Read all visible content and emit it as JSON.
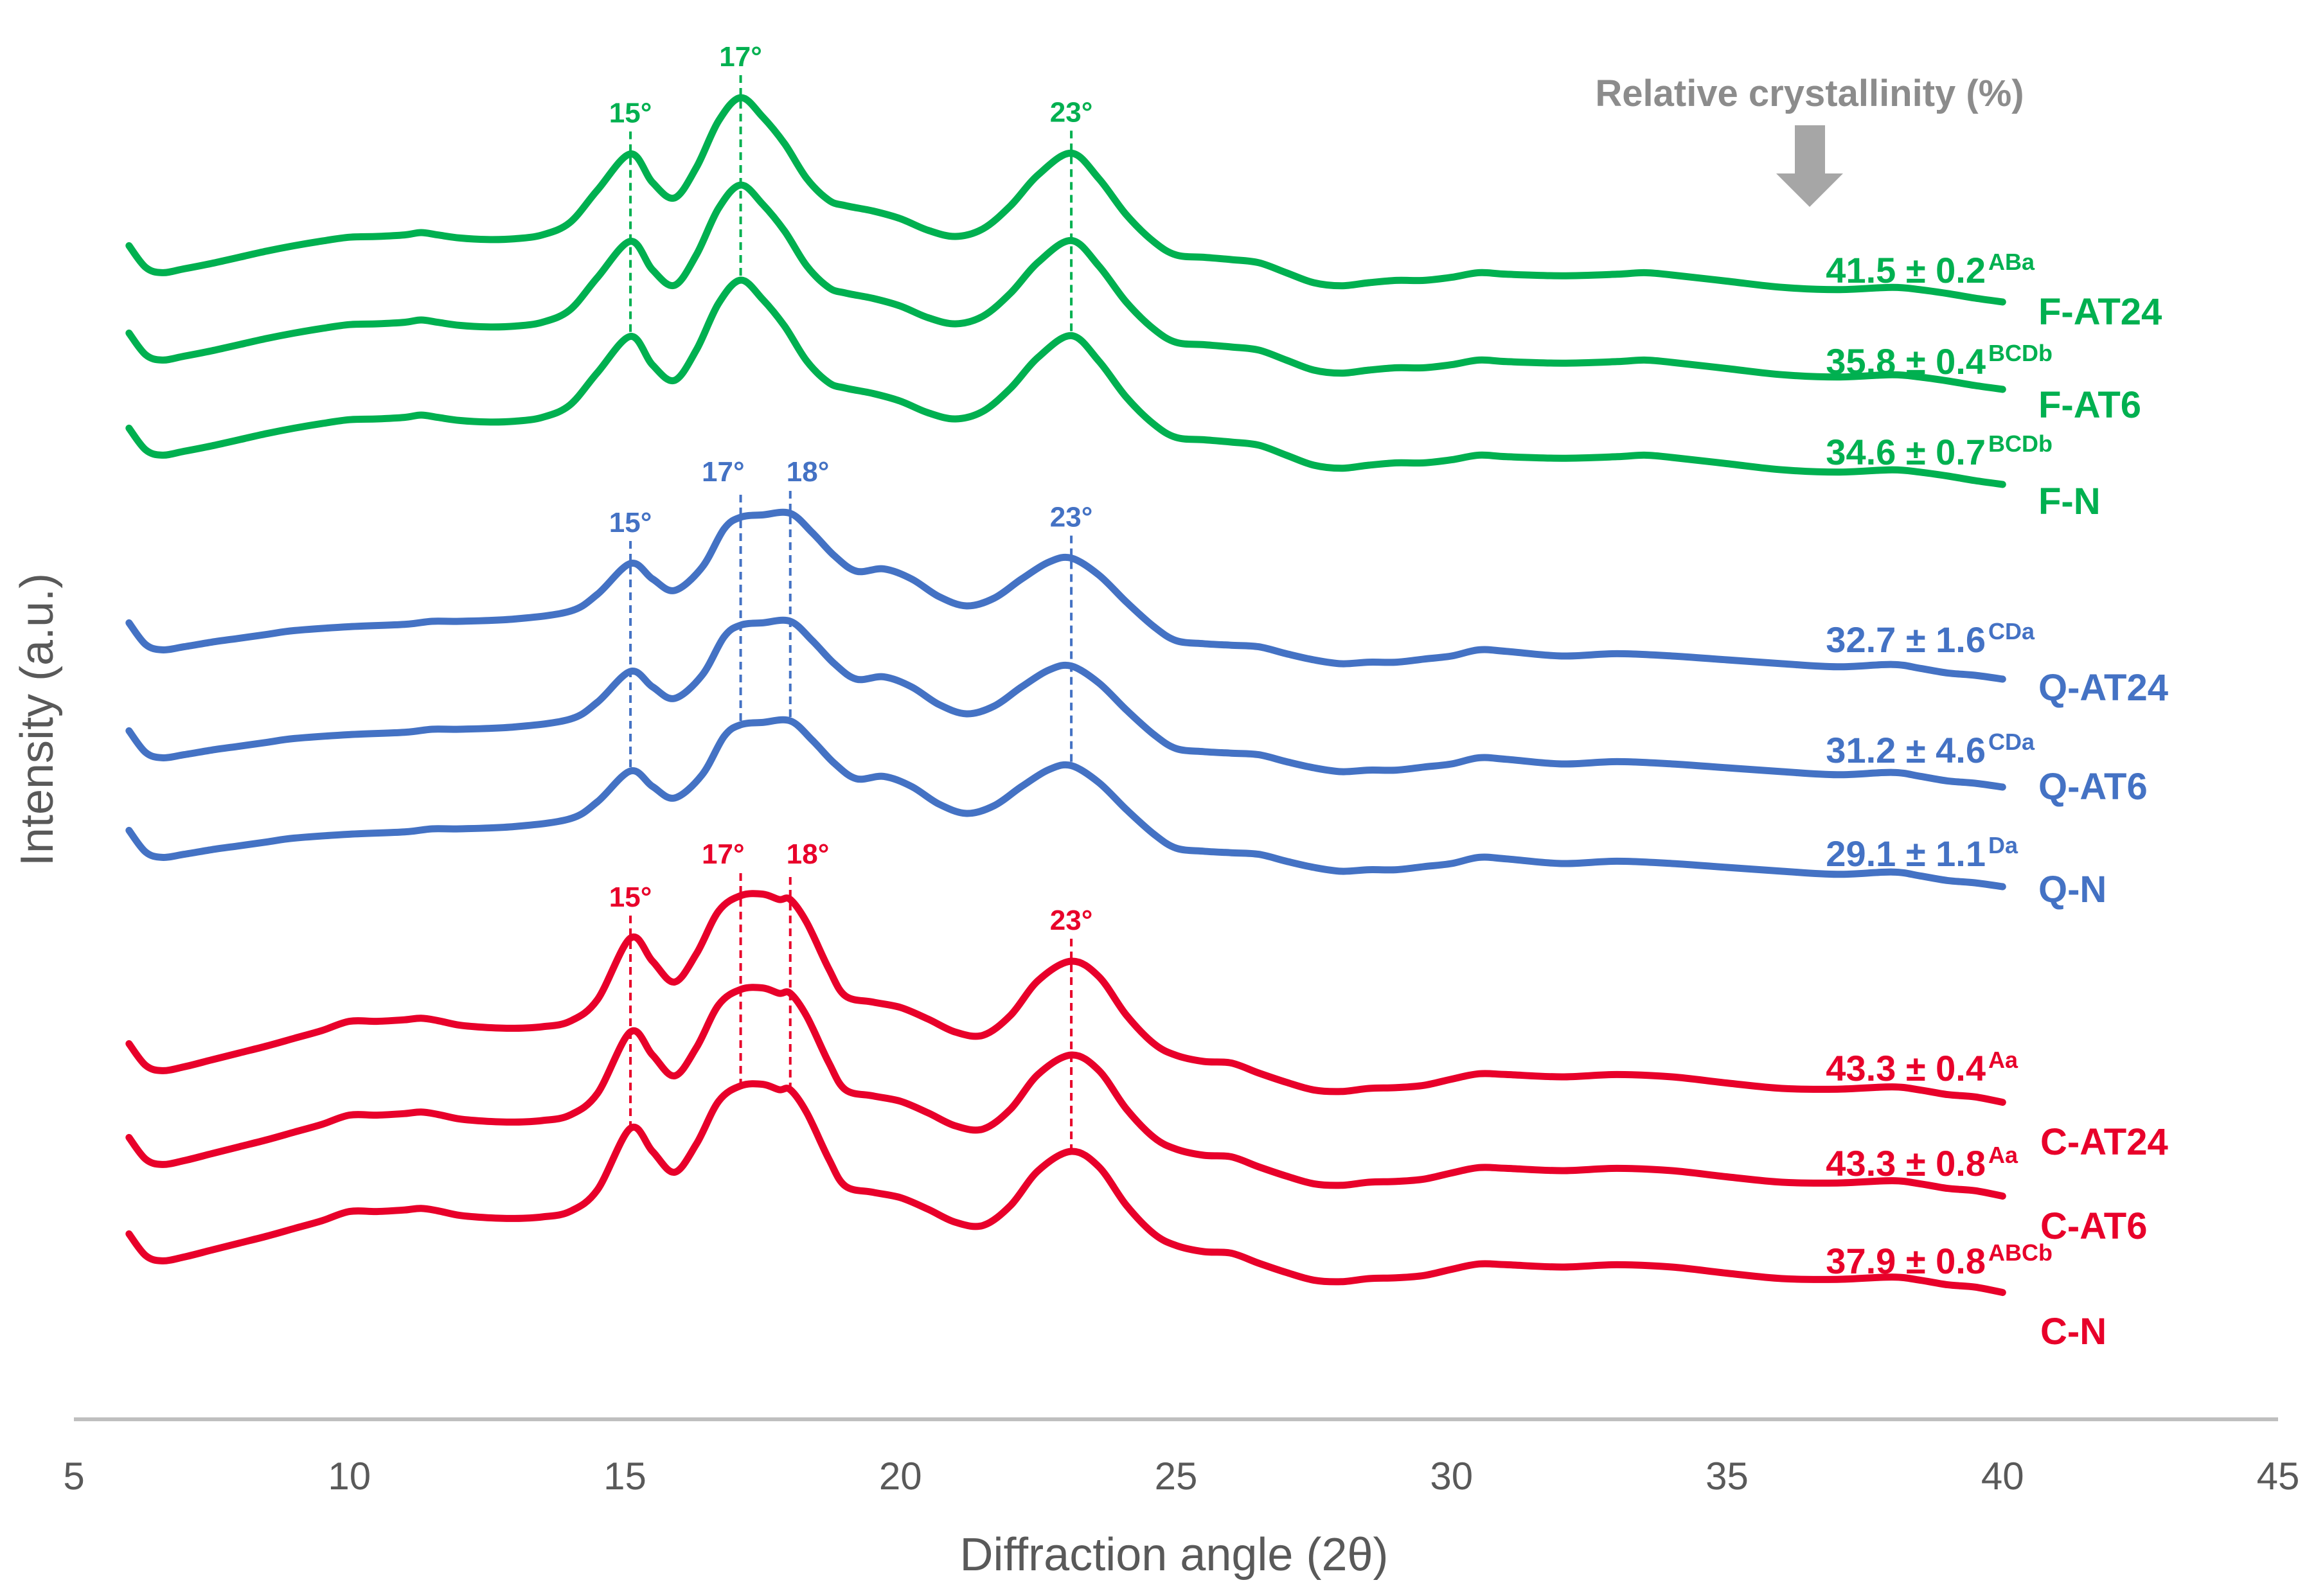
{
  "chart_data": {
    "type": "line",
    "title": "",
    "xlabel": "Diffraction angle (2θ)",
    "ylabel": "Intensity (a.u.)",
    "xlim": [
      5,
      45
    ],
    "x_ticks": [
      "5",
      "10",
      "15",
      "20",
      "25",
      "30",
      "35",
      "40",
      "45"
    ],
    "y_ticks": "none",
    "grid": false,
    "legend": "none",
    "annotation_title": "Relative crystallinity (%)",
    "colors": {
      "F": "#00b050",
      "Q": "#4472c4",
      "C": "#e8002a",
      "axis": "#bfbfbf",
      "text": "#595959",
      "arrow": "#a6a6a6"
    },
    "peak_labels": [
      {
        "group": "F",
        "labels": [
          {
            "x": 15.1,
            "text": "15°"
          },
          {
            "x": 17.1,
            "text": "17°"
          },
          {
            "x": 23.1,
            "text": "23°"
          }
        ]
      },
      {
        "group": "Q",
        "labels": [
          {
            "x": 15.1,
            "text": "15°"
          },
          {
            "x": 17.1,
            "text": "17°"
          },
          {
            "x": 18.0,
            "text": "18°"
          },
          {
            "x": 23.1,
            "text": "23°"
          }
        ]
      },
      {
        "group": "C",
        "labels": [
          {
            "x": 15.1,
            "text": "15°"
          },
          {
            "x": 17.1,
            "text": "17°"
          },
          {
            "x": 18.0,
            "text": "18°"
          },
          {
            "x": 23.1,
            "text": "23°"
          }
        ]
      }
    ],
    "series": [
      {
        "name": "F-AT24",
        "group": "F",
        "crystallinity": "41.5 ± 0.2",
        "letters": "ABa",
        "profile": "F"
      },
      {
        "name": "F-AT6",
        "group": "F",
        "crystallinity": "35.8 ± 0.4",
        "letters": "BCDb",
        "profile": "F"
      },
      {
        "name": "F-N",
        "group": "F",
        "crystallinity": "34.6 ± 0.7",
        "letters": "BCDb",
        "profile": "F"
      },
      {
        "name": "Q-AT24",
        "group": "Q",
        "crystallinity": "32.7 ± 1.6",
        "letters": "CDa",
        "profile": "Q"
      },
      {
        "name": "Q-AT6",
        "group": "Q",
        "crystallinity": "31.2 ± 4.6",
        "letters": "CDa",
        "profile": "Q"
      },
      {
        "name": "Q-N",
        "group": "Q",
        "crystallinity": "29.1 ± 1.1",
        "letters": "Da",
        "profile": "Q"
      },
      {
        "name": "C-AT24",
        "group": "C",
        "crystallinity": "43.3 ± 0.4",
        "letters": "Aa",
        "profile": "C"
      },
      {
        "name": "C-AT6",
        "group": "C",
        "crystallinity": "43.3 ± 0.8",
        "letters": "Aa",
        "profile": "C"
      },
      {
        "name": "C-N",
        "group": "C",
        "crystallinity": "37.9 ± 0.8",
        "letters": "ABCb",
        "profile": "C"
      }
    ],
    "profiles": {
      "F": {
        "x": [
          6.0,
          6.3,
          6.6,
          7.0,
          7.5,
          8.0,
          8.5,
          9.0,
          9.5,
          10.0,
          10.5,
          11.0,
          11.3,
          11.6,
          12.0,
          12.5,
          13.0,
          13.5,
          14.0,
          14.5,
          15.1,
          15.5,
          15.9,
          16.3,
          16.7,
          17.1,
          17.5,
          17.9,
          18.3,
          18.7,
          19.0,
          19.5,
          20.0,
          20.5,
          21.0,
          21.5,
          22.0,
          22.5,
          23.1,
          23.6,
          24.1,
          24.6,
          25.0,
          25.5,
          26.0,
          26.5,
          27.0,
          27.5,
          28.0,
          28.5,
          29.0,
          29.5,
          30.0,
          30.5,
          31.0,
          32.0,
          33.0,
          33.5,
          34.0,
          35.0,
          36.0,
          37.0,
          38.0,
          38.5,
          39.0,
          39.5,
          40.0
        ],
        "y": [
          6.3,
          3.5,
          2.8,
          3.3,
          4.0,
          4.8,
          5.6,
          6.3,
          6.9,
          7.4,
          7.5,
          7.7,
          8.0,
          7.7,
          7.3,
          7.1,
          7.2,
          7.7,
          9.3,
          13.5,
          18.2,
          14.5,
          12.5,
          16.5,
          22.5,
          25.5,
          23.0,
          19.5,
          15.0,
          12.2,
          11.5,
          10.8,
          9.8,
          8.3,
          7.5,
          8.5,
          11.5,
          15.5,
          18.3,
          15.0,
          10.3,
          6.8,
          5.1,
          4.8,
          4.5,
          4.1,
          2.8,
          1.5,
          1.1,
          1.5,
          1.8,
          1.8,
          2.2,
          2.8,
          2.6,
          2.4,
          2.6,
          2.8,
          2.5,
          1.7,
          0.9,
          0.6,
          0.9,
          0.6,
          0.1,
          -0.5,
          -1.0
        ]
      },
      "Q": {
        "x": [
          6.0,
          6.3,
          6.6,
          7.0,
          7.5,
          8.0,
          8.5,
          9.0,
          10.0,
          11.0,
          11.5,
          12.0,
          13.0,
          14.0,
          14.5,
          15.1,
          15.5,
          15.9,
          16.4,
          16.8,
          17.1,
          17.5,
          18.0,
          18.4,
          18.8,
          19.2,
          19.7,
          20.2,
          20.7,
          21.2,
          21.7,
          22.2,
          22.7,
          23.1,
          23.6,
          24.1,
          24.6,
          25.0,
          25.5,
          26.0,
          26.5,
          27.0,
          27.5,
          28.0,
          28.5,
          29.0,
          29.5,
          30.0,
          30.5,
          31.0,
          32.0,
          33.0,
          34.0,
          35.0,
          36.0,
          37.0,
          38.0,
          38.5,
          39.0,
          39.5,
          40.0
        ],
        "y": [
          6.3,
          3.5,
          2.8,
          3.2,
          3.8,
          4.3,
          4.8,
          5.3,
          5.8,
          6.1,
          6.5,
          6.5,
          6.8,
          7.8,
          10.0,
          14.0,
          12.0,
          10.5,
          13.5,
          18.5,
          20.0,
          20.3,
          20.5,
          18.0,
          15.0,
          13.0,
          13.3,
          12.0,
          9.7,
          8.5,
          9.5,
          12.0,
          14.2,
          14.7,
          12.5,
          9.0,
          5.8,
          4.0,
          3.6,
          3.4,
          3.2,
          2.3,
          1.5,
          1.0,
          1.2,
          1.2,
          1.6,
          2.0,
          2.8,
          2.6,
          2.0,
          2.3,
          2.0,
          1.5,
          1.0,
          0.6,
          0.9,
          0.4,
          -0.2,
          -0.5,
          -1.0
        ]
      },
      "C": {
        "x": [
          6.0,
          6.3,
          6.6,
          7.0,
          7.5,
          8.0,
          8.5,
          9.0,
          9.5,
          10.0,
          10.5,
          11.0,
          11.3,
          11.6,
          12.0,
          12.5,
          13.0,
          13.5,
          14.0,
          14.5,
          15.1,
          15.5,
          15.9,
          16.3,
          16.7,
          17.1,
          17.5,
          17.8,
          18.0,
          18.3,
          18.7,
          19.0,
          19.5,
          20.0,
          20.5,
          21.0,
          21.5,
          22.0,
          22.5,
          23.1,
          23.6,
          24.1,
          24.6,
          25.0,
          25.5,
          26.0,
          26.5,
          27.0,
          27.5,
          28.0,
          28.5,
          29.0,
          29.5,
          30.0,
          30.5,
          31.0,
          32.0,
          33.0,
          34.0,
          35.0,
          36.0,
          37.0,
          38.0,
          38.5,
          39.0,
          39.5,
          40.0
        ],
        "y": [
          6.3,
          3.5,
          2.8,
          3.3,
          4.2,
          5.1,
          6.0,
          7.0,
          8.0,
          9.2,
          9.2,
          9.4,
          9.6,
          9.3,
          8.7,
          8.4,
          8.3,
          8.5,
          9.2,
          12.0,
          20.0,
          17.0,
          14.3,
          18.0,
          23.5,
          25.5,
          25.7,
          25.0,
          25.0,
          22.0,
          16.0,
          12.5,
          11.7,
          11.0,
          9.5,
          7.8,
          7.4,
          10.0,
          14.5,
          17.0,
          15.0,
          10.0,
          6.3,
          4.8,
          4.0,
          3.8,
          2.5,
          1.3,
          0.3,
          0.1,
          0.5,
          0.6,
          0.9,
          1.7,
          2.4,
          2.3,
          2.0,
          2.3,
          2.0,
          1.2,
          0.5,
          0.4,
          0.7,
          0.3,
          -0.3,
          -0.6,
          -1.3
        ]
      }
    }
  }
}
